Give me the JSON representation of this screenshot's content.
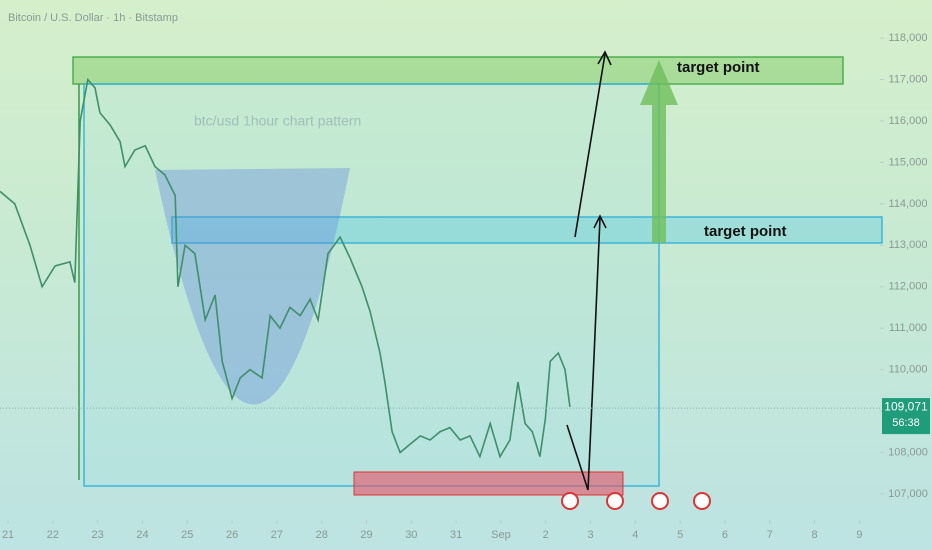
{
  "chart_data": {
    "type": "line",
    "title": "Bitcoin / U.S. Dollar · 1h · Bitstamp",
    "annotation": "btc/usd 1hour chart pattern",
    "targets": [
      "target point",
      "target point"
    ],
    "color": "#3f8f6b",
    "x": [
      20.82,
      21.15,
      21.49,
      21.76,
      22.05,
      22.38,
      22.49,
      22.61,
      22.78,
      22.94,
      23.05,
      23.28,
      23.5,
      23.61,
      23.83,
      24.06,
      24.28,
      24.5,
      24.73,
      24.79,
      24.95,
      25.17,
      25.4,
      25.62,
      25.78,
      26.0,
      26.18,
      26.4,
      26.67,
      26.85,
      27.07,
      27.29,
      27.52,
      27.74,
      27.92,
      28.14,
      28.41,
      28.63,
      28.9,
      29.08,
      29.3,
      29.41,
      29.57,
      29.75,
      29.97,
      30.2,
      30.42,
      30.64,
      30.86,
      31.09,
      31.31,
      31.53,
      31.76,
      31.98,
      32.2,
      32.38,
      32.54,
      32.7,
      32.87,
      32.99,
      33.1,
      33.28,
      33.43,
      33.54
    ],
    "values": [
      114300,
      114000,
      113000,
      112000,
      112500,
      112600,
      112100,
      116000,
      117000,
      116800,
      116200,
      115900,
      115500,
      114900,
      115300,
      115400,
      114900,
      114700,
      114200,
      112000,
      113000,
      112800,
      111200,
      111800,
      110200,
      109300,
      109800,
      110000,
      109800,
      111300,
      111000,
      111500,
      111300,
      111700,
      111200,
      112800,
      113200,
      112700,
      112000,
      111400,
      110400,
      109700,
      108500,
      108000,
      108200,
      108400,
      108300,
      108500,
      108600,
      108300,
      108400,
      107900,
      108700,
      107900,
      108300,
      109700,
      108700,
      108500,
      107900,
      108800,
      110200,
      110400,
      110000,
      109100
    ],
    "xlim": [
      20.82,
      40.46
    ],
    "ylim": [
      106370,
      118920
    ],
    "xticks": [
      21,
      22,
      23,
      24,
      25,
      26,
      27,
      28,
      29,
      30,
      31,
      {
        "value": 32,
        "label": "Sep"
      },
      {
        "value": 33,
        "label": "2"
      },
      {
        "value": 34,
        "label": "3"
      },
      {
        "value": 35,
        "label": "4"
      },
      {
        "value": 36,
        "label": "5"
      },
      {
        "value": 37,
        "label": "6"
      },
      {
        "value": 38,
        "label": "7"
      },
      {
        "value": 39,
        "label": "8"
      },
      {
        "value": 40,
        "label": "9"
      }
    ],
    "yticks": [
      {
        "value": 107000,
        "label": "107,000"
      },
      {
        "value": 108000,
        "label": "108,000"
      },
      {
        "value": 109000,
        "label": "109,000"
      },
      {
        "value": 110000,
        "label": "110,000"
      },
      {
        "value": 111000,
        "label": "111,000"
      },
      {
        "value": 112000,
        "label": "112,000"
      },
      {
        "value": 113000,
        "label": "113,000"
      },
      {
        "value": 114000,
        "label": "114,000"
      },
      {
        "value": 115000,
        "label": "115,000"
      },
      {
        "value": 116000,
        "label": "116,000"
      },
      {
        "value": 117000,
        "label": "117,000"
      },
      {
        "value": 118000,
        "label": "118,000"
      }
    ],
    "price_tag": {
      "value": 109071,
      "label": "109,071"
    },
    "countdown": "56:38"
  }
}
